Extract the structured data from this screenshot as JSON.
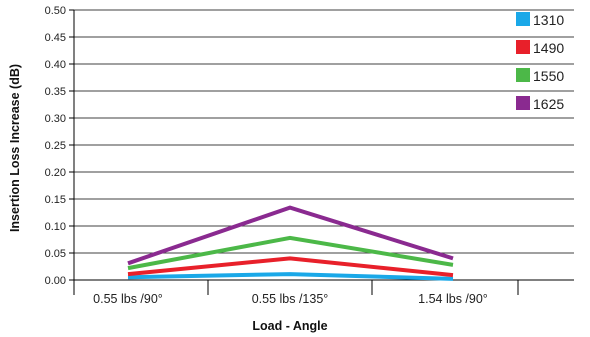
{
  "chart_data": {
    "type": "line",
    "xlabel": "Load - Angle",
    "ylabel": "Insertion Loss Increase (dB)",
    "categories": [
      "0.55 lbs /90°",
      "0.55 lbs /135°",
      "1.54 lbs /90°"
    ],
    "ylim": [
      0,
      0.5
    ],
    "yticks": [
      "0.00",
      "0.05",
      "0.10",
      "0.15",
      "0.20",
      "0.25",
      "0.30",
      "0.35",
      "0.40",
      "0.45",
      "0.50"
    ],
    "grid": true,
    "legend_position": "right",
    "series": [
      {
        "name": "1310",
        "color": "#1aa8e8",
        "values": [
          0.005,
          0.011,
          0.002
        ]
      },
      {
        "name": "1490",
        "color": "#e8202a",
        "values": [
          0.011,
          0.04,
          0.009
        ]
      },
      {
        "name": "1550",
        "color": "#4cb848",
        "values": [
          0.022,
          0.078,
          0.028
        ]
      },
      {
        "name": "1625",
        "color": "#8a2a90",
        "values": [
          0.031,
          0.134,
          0.04
        ]
      }
    ]
  }
}
